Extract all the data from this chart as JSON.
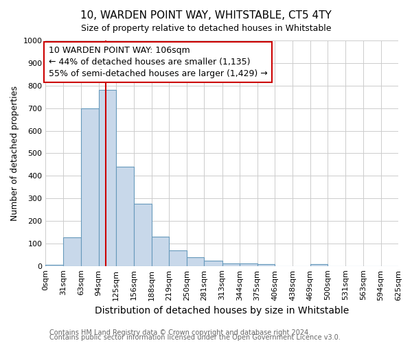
{
  "title": "10, WARDEN POINT WAY, WHITSTABLE, CT5 4TY",
  "subtitle": "Size of property relative to detached houses in Whitstable",
  "xlabel": "Distribution of detached houses by size in Whitstable",
  "ylabel": "Number of detached properties",
  "footnote1": "Contains HM Land Registry data © Crown copyright and database right 2024.",
  "footnote2": "Contains public sector information licensed under the Open Government Licence v3.0.",
  "bin_edges": [
    0,
    31,
    63,
    94,
    125,
    156,
    188,
    219,
    250,
    281,
    313,
    344,
    375,
    406,
    438,
    469,
    500,
    531,
    563,
    594,
    625
  ],
  "bar_heights": [
    7,
    128,
    700,
    780,
    440,
    275,
    130,
    70,
    38,
    25,
    13,
    13,
    8,
    0,
    0,
    8,
    0,
    0,
    0,
    0
  ],
  "bar_color": "#c8d8ea",
  "bar_edge_color": "#6699bb",
  "bar_edge_width": 0.8,
  "property_size": 106,
  "red_line_color": "#cc0000",
  "annotation_line1": "10 WARDEN POINT WAY: 106sqm",
  "annotation_line2": "← 44% of detached houses are smaller (1,135)",
  "annotation_line3": "55% of semi-detached houses are larger (1,429) →",
  "annotation_box_color": "#ffffff",
  "annotation_box_edge_color": "#cc0000",
  "ylim": [
    0,
    1000
  ],
  "yticks": [
    0,
    100,
    200,
    300,
    400,
    500,
    600,
    700,
    800,
    900,
    1000
  ],
  "xlim": [
    0,
    625
  ],
  "background_color": "#ffffff",
  "grid_color": "#cccccc",
  "tick_labels": [
    "0sqm",
    "31sqm",
    "63sqm",
    "94sqm",
    "125sqm",
    "156sqm",
    "188sqm",
    "219sqm",
    "250sqm",
    "281sqm",
    "313sqm",
    "344sqm",
    "375sqm",
    "406sqm",
    "438sqm",
    "469sqm",
    "500sqm",
    "531sqm",
    "563sqm",
    "594sqm",
    "625sqm"
  ],
  "title_fontsize": 11,
  "subtitle_fontsize": 9,
  "ylabel_fontsize": 9,
  "xlabel_fontsize": 10,
  "tick_fontsize": 8,
  "footnote_fontsize": 7,
  "annotation_fontsize": 9
}
